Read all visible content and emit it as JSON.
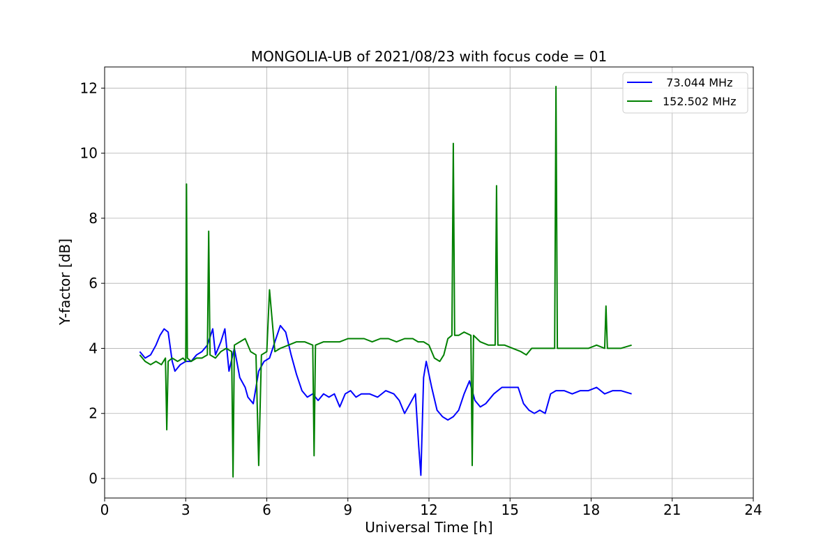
{
  "chart_data": {
    "type": "line",
    "title": "MONGOLIA-UB of 2021/08/23 with focus code = 01",
    "xlabel": "Universal Time [h]",
    "ylabel": "Y-factor [dB]",
    "xlim": [
      0,
      24
    ],
    "ylim": [
      -0.6,
      12.65
    ],
    "xticks": [
      0,
      3,
      6,
      9,
      12,
      15,
      18,
      21,
      24
    ],
    "yticks": [
      0,
      2,
      4,
      6,
      8,
      10,
      12
    ],
    "grid": true,
    "legend_position": "top-right",
    "series": [
      {
        "name": "  73.044 MHz",
        "color": "#0000ff",
        "x": [
          1.3,
          1.5,
          1.7,
          1.9,
          2.05,
          2.2,
          2.35,
          2.5,
          2.6,
          2.8,
          3.0,
          3.2,
          3.4,
          3.6,
          3.8,
          4.0,
          4.1,
          4.3,
          4.45,
          4.6,
          4.8,
          5.0,
          5.2,
          5.3,
          5.5,
          5.7,
          5.9,
          6.1,
          6.3,
          6.5,
          6.7,
          6.9,
          7.1,
          7.3,
          7.5,
          7.7,
          7.9,
          8.1,
          8.3,
          8.5,
          8.7,
          8.9,
          9.1,
          9.3,
          9.5,
          9.8,
          10.1,
          10.4,
          10.7,
          10.9,
          11.1,
          11.3,
          11.5,
          11.62,
          11.7,
          11.8,
          11.9,
          12.1,
          12.3,
          12.5,
          12.7,
          12.9,
          13.1,
          13.3,
          13.5,
          13.7,
          13.9,
          14.1,
          14.4,
          14.7,
          15.0,
          15.3,
          15.5,
          15.7,
          15.9,
          16.1,
          16.3,
          16.5,
          16.7,
          17.0,
          17.3,
          17.6,
          17.9,
          18.2,
          18.5,
          18.8,
          19.1,
          19.5
        ],
        "y": [
          3.9,
          3.7,
          3.8,
          4.1,
          4.4,
          4.6,
          4.5,
          3.6,
          3.3,
          3.5,
          3.6,
          3.6,
          3.8,
          3.9,
          4.1,
          4.6,
          3.8,
          4.2,
          4.6,
          3.3,
          4.0,
          3.1,
          2.8,
          2.5,
          2.3,
          3.3,
          3.6,
          3.7,
          4.2,
          4.7,
          4.5,
          3.8,
          3.2,
          2.7,
          2.5,
          2.6,
          2.4,
          2.6,
          2.5,
          2.6,
          2.2,
          2.6,
          2.7,
          2.5,
          2.6,
          2.6,
          2.5,
          2.7,
          2.6,
          2.4,
          2.0,
          2.3,
          2.6,
          1.0,
          0.1,
          3.1,
          3.6,
          2.8,
          2.1,
          1.9,
          1.8,
          1.9,
          2.1,
          2.6,
          3.0,
          2.4,
          2.2,
          2.3,
          2.6,
          2.8,
          2.8,
          2.8,
          2.3,
          2.1,
          2.0,
          2.1,
          2.0,
          2.6,
          2.7,
          2.7,
          2.6,
          2.7,
          2.7,
          2.8,
          2.6,
          2.7,
          2.7,
          2.6
        ]
      },
      {
        "name": "152.502 MHz",
        "color": "#008000",
        "x": [
          1.3,
          1.5,
          1.7,
          1.9,
          2.1,
          2.25,
          2.3,
          2.35,
          2.5,
          2.7,
          2.9,
          3.0,
          3.03,
          3.06,
          3.2,
          3.4,
          3.6,
          3.8,
          3.85,
          3.9,
          4.1,
          4.3,
          4.5,
          4.7,
          4.75,
          4.8,
          5.0,
          5.2,
          5.4,
          5.6,
          5.7,
          5.8,
          6.0,
          6.1,
          6.3,
          6.5,
          6.8,
          7.1,
          7.4,
          7.7,
          7.75,
          7.8,
          8.1,
          8.4,
          8.7,
          9.0,
          9.3,
          9.6,
          9.9,
          10.2,
          10.5,
          10.8,
          11.1,
          11.4,
          11.6,
          11.8,
          12.0,
          12.2,
          12.4,
          12.55,
          12.7,
          12.85,
          12.9,
          12.95,
          13.1,
          13.3,
          13.55,
          13.6,
          13.65,
          13.9,
          14.2,
          14.45,
          14.5,
          14.55,
          14.8,
          15.1,
          15.4,
          15.6,
          15.8,
          16.1,
          16.4,
          16.65,
          16.7,
          16.75,
          17.0,
          17.3,
          17.6,
          17.9,
          18.2,
          18.5,
          18.55,
          18.6,
          18.8,
          19.1,
          19.5
        ],
        "y": [
          3.8,
          3.6,
          3.5,
          3.6,
          3.5,
          3.7,
          1.5,
          3.6,
          3.7,
          3.6,
          3.7,
          3.6,
          9.05,
          3.7,
          3.6,
          3.7,
          3.7,
          3.8,
          7.6,
          3.8,
          3.7,
          3.9,
          4.0,
          3.9,
          0.05,
          4.1,
          4.2,
          4.3,
          3.9,
          3.8,
          0.4,
          3.8,
          3.9,
          5.8,
          3.9,
          4.0,
          4.1,
          4.2,
          4.2,
          4.1,
          0.7,
          4.1,
          4.2,
          4.2,
          4.2,
          4.3,
          4.3,
          4.3,
          4.2,
          4.3,
          4.3,
          4.2,
          4.3,
          4.3,
          4.2,
          4.2,
          4.1,
          3.7,
          3.6,
          3.8,
          4.3,
          4.4,
          10.3,
          4.4,
          4.4,
          4.5,
          4.4,
          0.4,
          4.4,
          4.2,
          4.1,
          4.1,
          9.0,
          4.1,
          4.1,
          4.0,
          3.9,
          3.8,
          4.0,
          4.0,
          4.0,
          4.0,
          12.05,
          4.0,
          4.0,
          4.0,
          4.0,
          4.0,
          4.1,
          4.0,
          5.3,
          4.0,
          4.0,
          4.0,
          4.1
        ]
      }
    ]
  }
}
